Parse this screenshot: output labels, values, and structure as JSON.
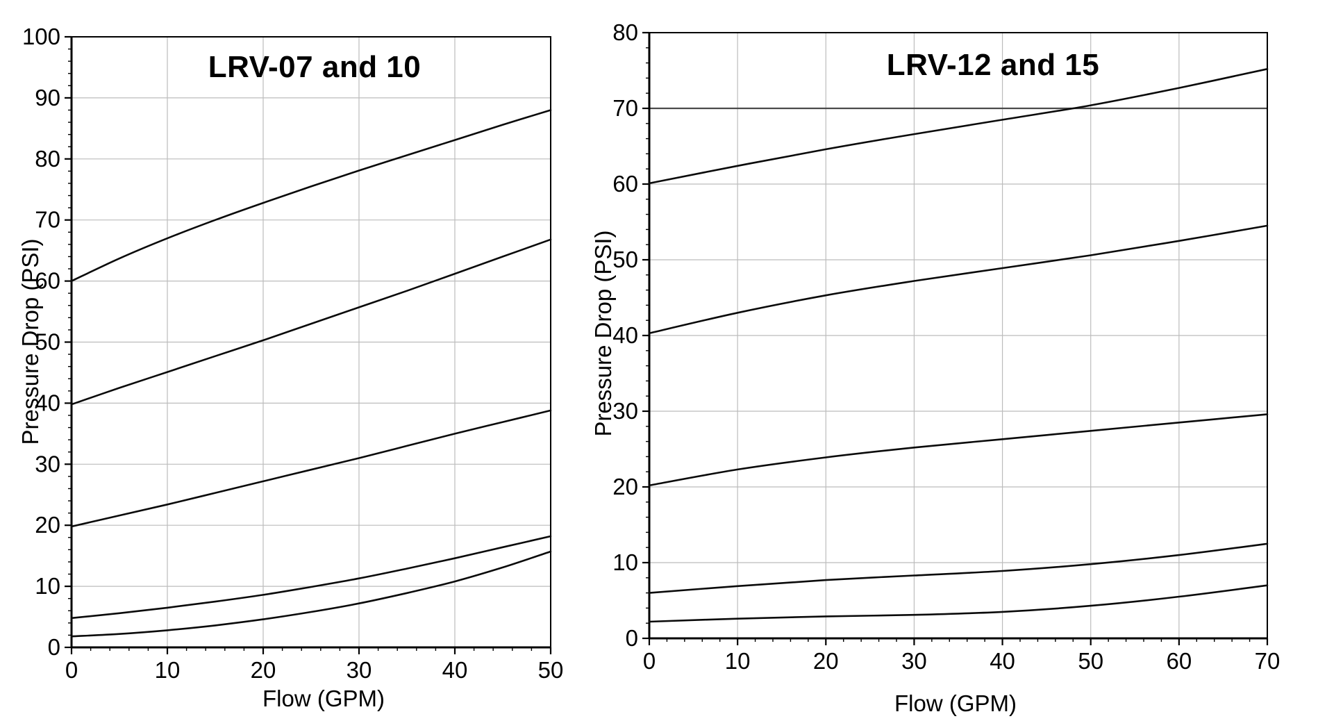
{
  "figure": {
    "background": "#ffffff",
    "description_colors": {
      "curve": "#0a0a0a",
      "grid": "#bcbcbc",
      "reference_line": "#4a4a4a",
      "axis": "#000000",
      "text": "#000000"
    }
  },
  "chart_data": [
    {
      "type": "line",
      "title": "LRV-07 and 10",
      "xlabel": "Flow (GPM)",
      "ylabel": "Pressure Drop (PSI)",
      "xlim": [
        0,
        50
      ],
      "ylim": [
        0,
        100
      ],
      "x_ticks": [
        0,
        10,
        20,
        30,
        40,
        50
      ],
      "y_ticks": [
        0,
        10,
        20,
        30,
        40,
        50,
        60,
        70,
        80,
        90,
        100
      ],
      "minor_tick_step": 2,
      "grid": true,
      "legend": "none",
      "series": [
        {
          "name": "curve-1",
          "x": [
            0,
            5,
            10,
            15,
            20,
            25,
            30,
            35,
            40,
            45,
            50
          ],
          "y": [
            60.0,
            63.7,
            67.0,
            70.0,
            72.8,
            75.5,
            78.1,
            80.6,
            83.1,
            85.6,
            88.0
          ]
        },
        {
          "name": "curve-2",
          "x": [
            0,
            5,
            10,
            15,
            20,
            25,
            30,
            35,
            40,
            45,
            50
          ],
          "y": [
            39.8,
            42.5,
            45.1,
            47.7,
            50.3,
            53.0,
            55.7,
            58.4,
            61.2,
            64.0,
            66.8
          ]
        },
        {
          "name": "curve-3",
          "x": [
            0,
            5,
            10,
            15,
            20,
            25,
            30,
            35,
            40,
            45,
            50
          ],
          "y": [
            19.8,
            21.6,
            23.4,
            25.3,
            27.2,
            29.1,
            31.0,
            33.0,
            35.0,
            36.9,
            38.8
          ]
        },
        {
          "name": "curve-4",
          "x": [
            0,
            5,
            10,
            15,
            20,
            25,
            30,
            35,
            40,
            45,
            50
          ],
          "y": [
            4.8,
            5.6,
            6.5,
            7.5,
            8.6,
            9.9,
            11.3,
            12.9,
            14.6,
            16.4,
            18.2
          ]
        },
        {
          "name": "curve-5",
          "x": [
            0,
            5,
            10,
            15,
            20,
            25,
            30,
            35,
            40,
            45,
            50
          ],
          "y": [
            1.8,
            2.2,
            2.8,
            3.6,
            4.6,
            5.8,
            7.2,
            8.9,
            10.8,
            13.1,
            15.7
          ]
        }
      ]
    },
    {
      "type": "line",
      "title": "LRV-12 and 15",
      "xlabel": "Flow (GPM)",
      "ylabel": "Pressure Drop (PSI)",
      "xlim": [
        0,
        70
      ],
      "ylim": [
        0,
        80
      ],
      "x_ticks": [
        0,
        10,
        20,
        30,
        40,
        50,
        60,
        70
      ],
      "y_ticks": [
        0,
        10,
        20,
        30,
        40,
        50,
        60,
        70,
        80
      ],
      "minor_tick_step": 2,
      "grid": true,
      "legend": "none",
      "reference_line_y": 70,
      "series": [
        {
          "name": "curve-1",
          "x": [
            0,
            10,
            20,
            30,
            40,
            50,
            60,
            70
          ],
          "y": [
            60.1,
            62.4,
            64.6,
            66.6,
            68.5,
            70.4,
            72.7,
            75.2
          ]
        },
        {
          "name": "curve-2",
          "x": [
            0,
            10,
            20,
            30,
            40,
            50,
            60,
            70
          ],
          "y": [
            40.3,
            43.0,
            45.3,
            47.2,
            48.9,
            50.6,
            52.5,
            54.5
          ]
        },
        {
          "name": "curve-3",
          "x": [
            0,
            10,
            20,
            30,
            40,
            50,
            60,
            70
          ],
          "y": [
            20.2,
            22.3,
            23.9,
            25.2,
            26.3,
            27.4,
            28.5,
            29.6
          ]
        },
        {
          "name": "curve-4",
          "x": [
            0,
            10,
            20,
            30,
            40,
            50,
            60,
            70
          ],
          "y": [
            6.0,
            6.9,
            7.7,
            8.3,
            8.9,
            9.8,
            11.0,
            12.5
          ]
        },
        {
          "name": "curve-5",
          "x": [
            0,
            10,
            20,
            30,
            40,
            50,
            60,
            70
          ],
          "y": [
            2.2,
            2.6,
            2.9,
            3.1,
            3.5,
            4.3,
            5.5,
            7.0
          ]
        }
      ]
    }
  ]
}
